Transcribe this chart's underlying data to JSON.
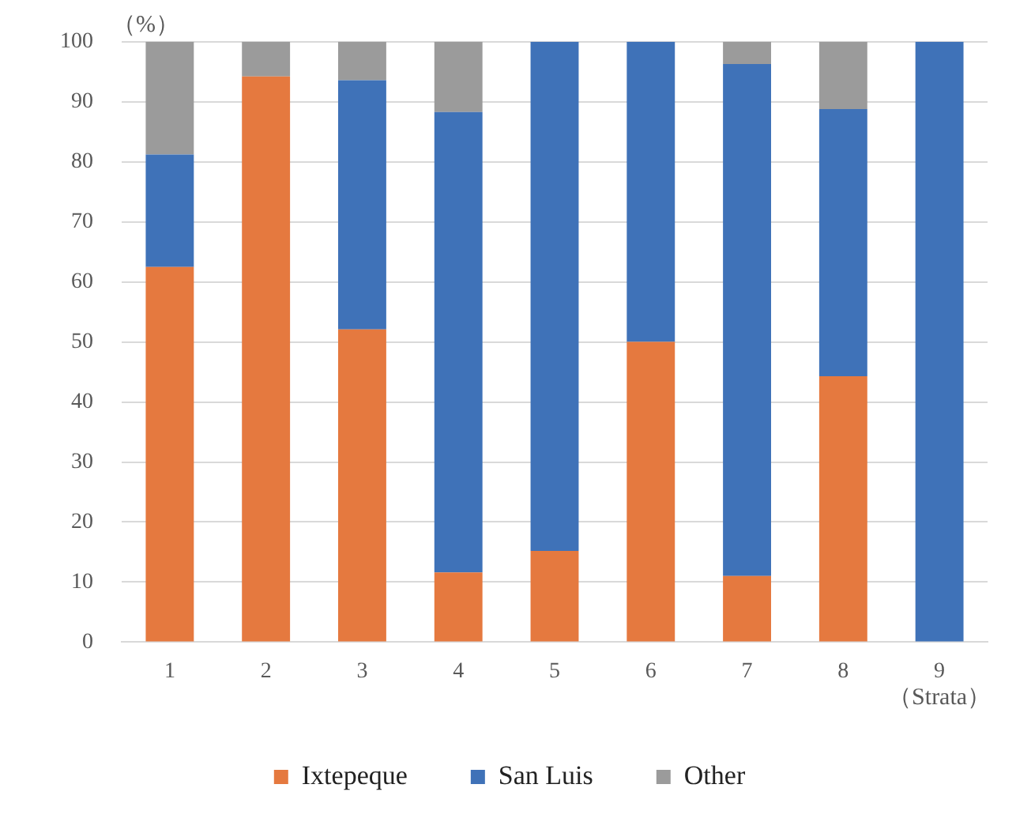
{
  "chart_data": {
    "type": "bar",
    "stacked": true,
    "ylabel": "（%）",
    "xlabel": "（Strata）",
    "categories": [
      "1",
      "2",
      "3",
      "4",
      "5",
      "6",
      "7",
      "8",
      "9"
    ],
    "series": [
      {
        "name": "Ixtepeque",
        "color": "#e5793f",
        "values": [
          62.5,
          94.2,
          52.1,
          11.6,
          15.2,
          50,
          11.0,
          44.3,
          0
        ]
      },
      {
        "name": "San Luis",
        "color": "#3f72b8",
        "values": [
          18.7,
          0,
          41.5,
          76.7,
          84.8,
          50,
          85.3,
          44.5,
          100
        ]
      },
      {
        "name": "Other",
        "color": "#9b9b9b",
        "values": [
          18.8,
          5.8,
          6.4,
          11.7,
          0,
          0,
          3.7,
          11.2,
          0
        ]
      }
    ],
    "ylim": [
      0,
      100
    ],
    "yticks": [
      0,
      10,
      20,
      30,
      40,
      50,
      60,
      70,
      80,
      90,
      100
    ],
    "grid": "y",
    "legend": "bottom"
  }
}
